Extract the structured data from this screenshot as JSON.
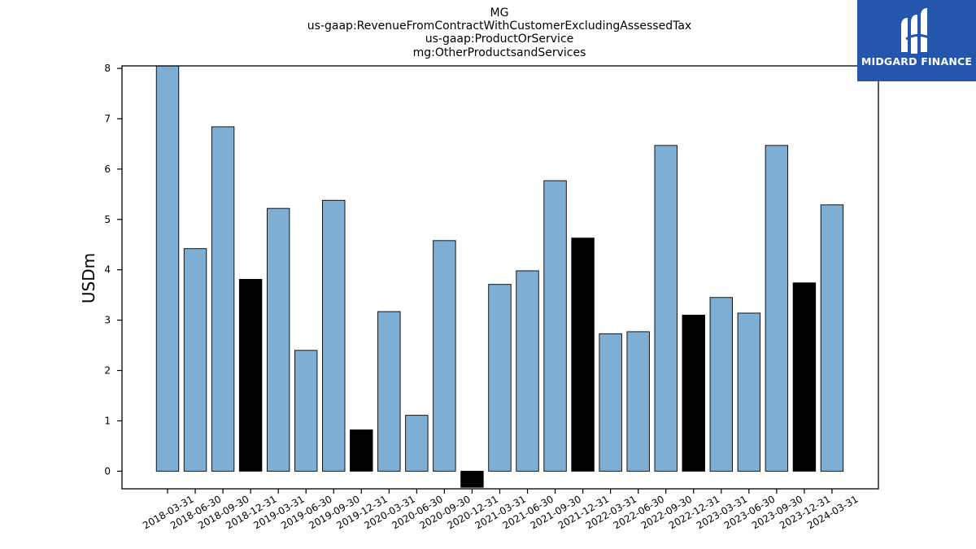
{
  "logo": {
    "text": "MIDGARD FINANCE",
    "icon": "midgard-m-logo-icon",
    "background": "#2456ad"
  },
  "chart_data": {
    "type": "bar",
    "title_lines": [
      "MG",
      "us-gaap:RevenueFromContractWithCustomerExcludingAssessedTax",
      "us-gaap:ProductOrService",
      "mg:OtherProductsandServices"
    ],
    "xlabel": "",
    "ylabel": "USDm",
    "ylim": [
      -0.35,
      8.05
    ],
    "yticks": [
      0,
      1,
      2,
      3,
      4,
      5,
      6,
      7,
      8
    ],
    "grid": false,
    "colors": {
      "quarter": "#7eaed3",
      "year_end": "#000000",
      "edge": "#000000"
    },
    "categories": [
      "2018-03-31",
      "2018-06-30",
      "2018-09-30",
      "2018-12-31",
      "2019-03-31",
      "2019-06-30",
      "2019-09-30",
      "2019-12-31",
      "2020-03-31",
      "2020-06-30",
      "2020-09-30",
      "2020-12-31",
      "2021-03-31",
      "2021-06-30",
      "2021-09-30",
      "2021-12-31",
      "2022-03-31",
      "2022-06-30",
      "2022-09-30",
      "2022-12-31",
      "2023-03-31",
      "2023-06-30",
      "2023-09-30",
      "2023-12-31",
      "2024-03-31"
    ],
    "values": [
      8.05,
      4.42,
      6.84,
      3.81,
      5.22,
      2.4,
      5.38,
      0.82,
      3.17,
      1.11,
      4.58,
      -0.32,
      3.71,
      3.98,
      5.77,
      4.63,
      2.73,
      2.77,
      6.47,
      3.1,
      3.45,
      3.14,
      6.47,
      3.74,
      5.29
    ],
    "year_end": [
      false,
      false,
      false,
      true,
      false,
      false,
      false,
      true,
      false,
      false,
      false,
      true,
      false,
      false,
      false,
      true,
      false,
      false,
      false,
      true,
      false,
      false,
      false,
      true,
      false
    ]
  }
}
